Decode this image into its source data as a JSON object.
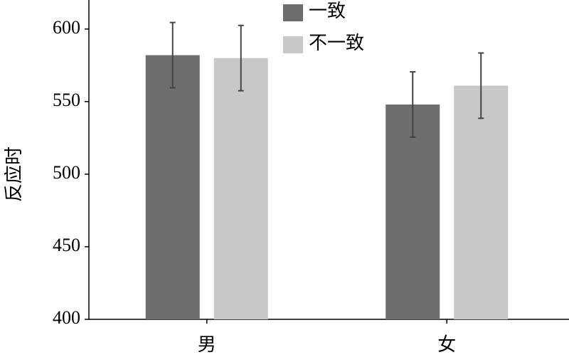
{
  "chart_data": {
    "type": "bar",
    "y_label": "反应时",
    "categories": [
      "男",
      "女"
    ],
    "series": [
      {
        "name": "一致",
        "color": "#6d6d6d",
        "values": [
          582,
          548
        ],
        "errors": [
          22.5,
          22.5
        ]
      },
      {
        "name": "不一致",
        "color": "#c8c8c8",
        "values": [
          580,
          561
        ],
        "errors": [
          22.5,
          22.5
        ]
      }
    ],
    "ylim": [
      400,
      620
    ],
    "yticks": [
      400,
      450,
      500,
      550,
      600
    ],
    "error_color": "#444444"
  }
}
